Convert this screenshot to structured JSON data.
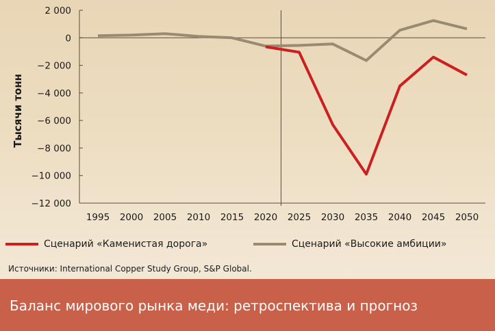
{
  "chart_data": {
    "type": "line",
    "title": "",
    "ylabel": "Тысячи тонн",
    "xlabel": "",
    "x": [
      1995,
      2000,
      2005,
      2010,
      2015,
      2020,
      2025,
      2030,
      2035,
      2040,
      2045,
      2050
    ],
    "x_tick_labels": [
      "1995",
      "2000",
      "2005",
      "2010",
      "2015",
      "2020",
      "2025",
      "2030",
      "2035",
      "2040",
      "2045",
      "2050"
    ],
    "y_ticks": [
      2000,
      0,
      -2000,
      -4000,
      -6000,
      -8000,
      -10000,
      -12000
    ],
    "y_tick_labels": [
      "2 000",
      "0",
      "−2 000",
      "−4 000",
      "−6 000",
      "−8 000",
      "−10 000",
      "−12 000"
    ],
    "ylim": [
      -12000,
      2000
    ],
    "grid": false,
    "divider_x": 2022.3,
    "series": [
      {
        "name": "Сценарий «Высокие амбиции»",
        "color": "#9a8a72",
        "points": [
          [
            1995,
            150
          ],
          [
            2000,
            200
          ],
          [
            2005,
            300
          ],
          [
            2010,
            100
          ],
          [
            2015,
            0
          ],
          [
            2020,
            -600
          ],
          [
            2025,
            -550
          ],
          [
            2030,
            -450
          ],
          [
            2035,
            -1650
          ],
          [
            2040,
            550
          ],
          [
            2045,
            1250
          ],
          [
            2050,
            650
          ]
        ]
      },
      {
        "name": "Сценарий «Каменистая дорога»",
        "color": "#cc1f1f",
        "points": [
          [
            2020,
            -650
          ],
          [
            2025,
            -1050
          ],
          [
            2030,
            -6300
          ],
          [
            2035,
            -9900
          ],
          [
            2040,
            -3500
          ],
          [
            2045,
            -1400
          ],
          [
            2050,
            -2700
          ]
        ]
      }
    ]
  },
  "legend": [
    {
      "label": "Сценарий «Каменистая дорога»",
      "color": "#cc1f1f"
    },
    {
      "label": "Сценарий «Высокие амбиции»",
      "color": "#9a8a72"
    }
  ],
  "source": "Источники: International Copper Study Group, S&P Global.",
  "footer_title": "Баланс мирового рынка меди: ретроспектива и прогноз",
  "colors": {
    "footer_bg": "#c9614a",
    "axis": "#5a4a3a"
  }
}
